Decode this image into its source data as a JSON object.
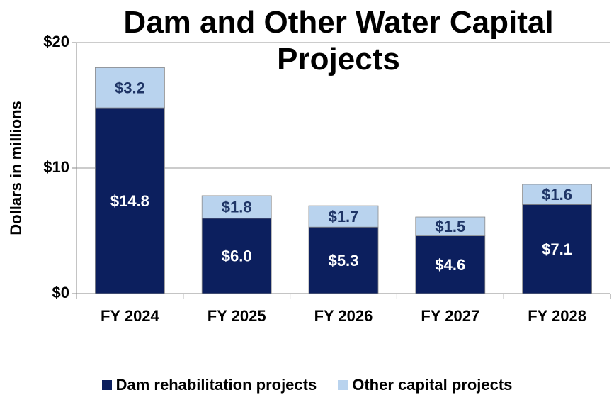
{
  "chart_data": {
    "type": "stacked_bar",
    "title": "Dam and Other Water Capital Projects",
    "y_label": "Dollars in millions",
    "categories": [
      "FY 2024",
      "FY 2025",
      "FY 2026",
      "FY 2027",
      "FY 2028"
    ],
    "series": [
      {
        "name": "Dam rehabilitation projects",
        "color": "#0c1f5e",
        "values": [
          14.8,
          6.0,
          5.3,
          4.6,
          7.1
        ],
        "value_labels": [
          "$14.8",
          "$6.0",
          "$5.3",
          "$4.6",
          "$7.1"
        ],
        "label_color": "#ffffff"
      },
      {
        "name": "Other capital projects",
        "color": "#b9d3ee",
        "values": [
          3.2,
          1.8,
          1.7,
          1.5,
          1.6
        ],
        "value_labels": [
          "$3.2",
          "$1.8",
          "$1.7",
          "$1.5",
          "$1.6"
        ],
        "label_color": "#1f3566"
      }
    ],
    "ylim": [
      0,
      20
    ],
    "yticks": [
      {
        "value": 0,
        "label": "$0"
      },
      {
        "value": 10,
        "label": "$10"
      },
      {
        "value": 20,
        "label": "$20"
      }
    ],
    "grid": true,
    "legend": "bottom"
  }
}
